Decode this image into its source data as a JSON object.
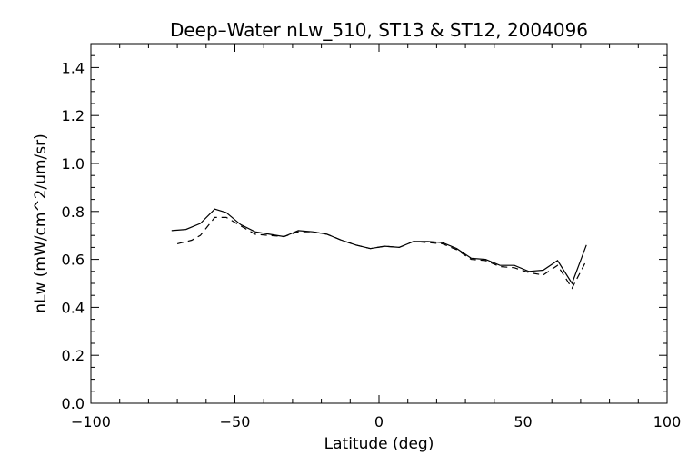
{
  "chart_data": {
    "type": "line",
    "title": "Deep–Water nLw_510, ST13 & ST12, 2004096",
    "xlabel": "Latitude (deg)",
    "ylabel": "nLw (mW/cm^2/um/sr)",
    "xlim": [
      -100,
      100
    ],
    "ylim": [
      0.0,
      1.5
    ],
    "x_ticks": [
      -100,
      -50,
      0,
      50,
      100
    ],
    "x_tick_labels": [
      "−100",
      "−50",
      "0",
      "50",
      "100"
    ],
    "y_ticks": [
      0.0,
      0.2,
      0.4,
      0.6,
      0.8,
      1.0,
      1.2,
      1.4
    ],
    "y_tick_labels": [
      "0.0",
      "0.2",
      "0.4",
      "0.6",
      "0.8",
      "1.0",
      "1.2",
      "1.4"
    ],
    "grid": false,
    "legend": "none",
    "series": [
      {
        "style": "solid",
        "color": "#000000",
        "x": [
          -72,
          -67,
          -62,
          -57,
          -53,
          -48,
          -43,
          -38,
          -33,
          -28,
          -23,
          -18,
          -13,
          -8,
          -3,
          2,
          7,
          12,
          17,
          22,
          27,
          32,
          37,
          42,
          47,
          52,
          57,
          62,
          67,
          72
        ],
        "y": [
          0.72,
          0.725,
          0.75,
          0.81,
          0.795,
          0.745,
          0.715,
          0.705,
          0.695,
          0.72,
          0.715,
          0.705,
          0.68,
          0.66,
          0.645,
          0.655,
          0.65,
          0.675,
          0.675,
          0.67,
          0.645,
          0.605,
          0.6,
          0.575,
          0.575,
          0.55,
          0.555,
          0.595,
          0.5,
          0.66
        ]
      },
      {
        "style": "dashed",
        "color": "#000000",
        "x": [
          -70,
          -65,
          -62,
          -57,
          -53,
          -48,
          -43,
          -38,
          -33,
          -28,
          -23,
          -18,
          -13,
          -8,
          -3,
          2,
          7,
          12,
          17,
          22,
          27,
          32,
          37,
          42,
          47,
          52,
          57,
          62,
          67,
          72
        ],
        "y": [
          0.665,
          0.68,
          0.7,
          0.775,
          0.775,
          0.74,
          0.705,
          0.7,
          0.695,
          0.715,
          0.715,
          0.705,
          0.68,
          0.66,
          0.645,
          0.655,
          0.65,
          0.675,
          0.67,
          0.665,
          0.64,
          0.6,
          0.595,
          0.57,
          0.565,
          0.545,
          0.535,
          0.575,
          0.48,
          0.595
        ]
      }
    ]
  }
}
